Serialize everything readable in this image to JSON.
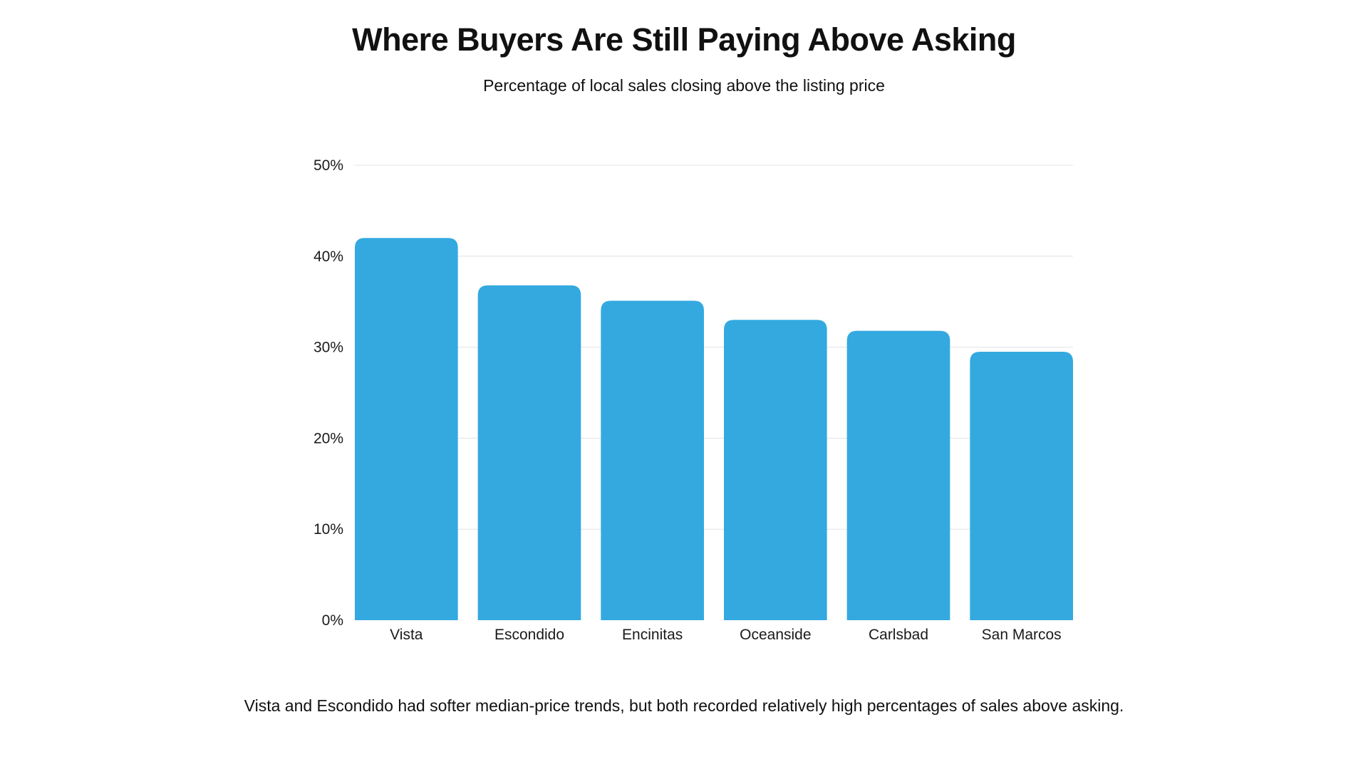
{
  "chart_data": {
    "type": "bar",
    "title": "Where Buyers Are Still Paying Above Asking",
    "subtitle": "Percentage of local sales closing above the listing price",
    "categories": [
      "Vista",
      "Escondido",
      "Encinitas",
      "Oceanside",
      "Carlsbad",
      "San Marcos"
    ],
    "values": [
      42.0,
      36.8,
      35.1,
      33.0,
      31.8,
      29.5
    ],
    "ylim": [
      0,
      50
    ],
    "yticks": [
      0,
      10,
      20,
      30,
      40,
      50
    ],
    "ytick_labels": [
      "0%",
      "10%",
      "20%",
      "30%",
      "40%",
      "50%"
    ],
    "xlabel": "",
    "ylabel": "",
    "grid": true,
    "bar_color": "#33a9e0",
    "footnote": "Vista and Escondido had softer median-price trends, but both recorded relatively high percentages of sales above asking."
  }
}
